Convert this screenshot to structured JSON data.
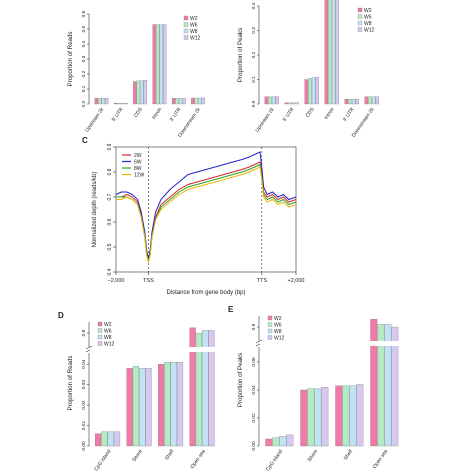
{
  "chart_data": [
    {
      "type": "bar",
      "ylabel": "Proportion of Reads",
      "categories": [
        "Upstream 2k",
        "5' UTR",
        "CDS",
        "Intron",
        "3' UTR",
        "Downstream 2k"
      ],
      "ylim": [
        0,
        0.6
      ],
      "yticks": [
        0.0,
        0.1,
        0.2,
        0.3,
        0.4,
        0.5,
        0.6
      ],
      "legend_position": "top-right",
      "series": [
        {
          "name": "W2",
          "color": "#f07aa8",
          "values": [
            0.038,
            0.006,
            0.15,
            0.53,
            0.038,
            0.04
          ]
        },
        {
          "name": "W6",
          "color": "#b5ebc4",
          "values": [
            0.038,
            0.006,
            0.155,
            0.53,
            0.038,
            0.04
          ]
        },
        {
          "name": "W8",
          "color": "#bfe3f2",
          "values": [
            0.038,
            0.006,
            0.155,
            0.53,
            0.038,
            0.04
          ]
        },
        {
          "name": "W12",
          "color": "#d7c8f0",
          "values": [
            0.038,
            0.006,
            0.158,
            0.53,
            0.038,
            0.04
          ]
        }
      ]
    },
    {
      "type": "bar",
      "ylabel": "Proportion of Peaks",
      "categories": [
        "Upstream 2k",
        "5' UTR",
        "CDS",
        "Intron",
        "3' UTR",
        "Downstream 2k"
      ],
      "ylim": [
        0,
        0.4
      ],
      "yticks": [
        0.0,
        0.1,
        0.2,
        0.3,
        0.4
      ],
      "legend_position": "top-right",
      "series": [
        {
          "name": "W2",
          "color": "#f07aa8",
          "values": [
            0.03,
            0.005,
            0.1,
            0.435,
            0.02,
            0.03
          ]
        },
        {
          "name": "W6",
          "color": "#b5ebc4",
          "values": [
            0.03,
            0.005,
            0.105,
            0.435,
            0.02,
            0.03
          ]
        },
        {
          "name": "W8",
          "color": "#bfe3f2",
          "values": [
            0.03,
            0.005,
            0.108,
            0.435,
            0.02,
            0.03
          ]
        },
        {
          "name": "W12",
          "color": "#d7c8f0",
          "values": [
            0.03,
            0.005,
            0.11,
            0.435,
            0.02,
            0.03
          ]
        }
      ]
    },
    {
      "type": "line",
      "panel_label": "C",
      "xlabel": "Distance from gene body (bp)",
      "ylabel": "Normalized depth (reads/kb)",
      "xticks": [
        "−2,000",
        "TSS",
        "TTS",
        "+2,000"
      ],
      "x_positions": [
        -2000,
        0,
        1,
        2000
      ],
      "ylim": [
        0.4,
        0.9
      ],
      "yticks": [
        0.4,
        0.5,
        0.6,
        0.7,
        0.8,
        0.9
      ],
      "legend_position": "top-left",
      "x_axis": "fraction of upstream, gene body and downstream",
      "x": [
        0,
        0.03,
        0.06,
        0.09,
        0.12,
        0.14,
        0.16,
        0.17,
        0.18,
        0.19,
        0.2,
        0.22,
        0.25,
        0.3,
        0.35,
        0.4,
        0.45,
        0.5,
        0.55,
        0.6,
        0.65,
        0.7,
        0.74,
        0.77,
        0.8,
        0.81,
        0.82,
        0.84,
        0.87,
        0.9,
        0.93,
        0.96,
        1.0
      ],
      "series": [
        {
          "name": "2W",
          "color": "#d62728",
          "values": [
            0.7,
            0.7,
            0.71,
            0.7,
            0.68,
            0.63,
            0.55,
            0.48,
            0.45,
            0.48,
            0.55,
            0.62,
            0.67,
            0.7,
            0.73,
            0.75,
            0.76,
            0.77,
            0.78,
            0.79,
            0.8,
            0.81,
            0.82,
            0.83,
            0.84,
            0.79,
            0.72,
            0.7,
            0.71,
            0.69,
            0.7,
            0.68,
            0.69
          ]
        },
        {
          "name": "6W",
          "color": "#2222cc",
          "values": [
            0.71,
            0.72,
            0.72,
            0.71,
            0.69,
            0.64,
            0.56,
            0.49,
            0.45,
            0.49,
            0.56,
            0.64,
            0.69,
            0.73,
            0.76,
            0.79,
            0.8,
            0.81,
            0.82,
            0.83,
            0.84,
            0.85,
            0.86,
            0.87,
            0.88,
            0.82,
            0.74,
            0.71,
            0.72,
            0.7,
            0.71,
            0.69,
            0.7
          ]
        },
        {
          "name": "8W",
          "color": "#2ca02c",
          "values": [
            0.7,
            0.7,
            0.7,
            0.69,
            0.67,
            0.62,
            0.54,
            0.47,
            0.44,
            0.47,
            0.54,
            0.61,
            0.66,
            0.69,
            0.72,
            0.74,
            0.75,
            0.76,
            0.77,
            0.78,
            0.79,
            0.8,
            0.81,
            0.82,
            0.83,
            0.78,
            0.71,
            0.69,
            0.7,
            0.68,
            0.69,
            0.67,
            0.68
          ]
        },
        {
          "name": "12W",
          "color": "#e8b800",
          "values": [
            0.69,
            0.69,
            0.7,
            0.69,
            0.67,
            0.62,
            0.54,
            0.47,
            0.44,
            0.47,
            0.54,
            0.61,
            0.65,
            0.68,
            0.71,
            0.73,
            0.74,
            0.75,
            0.76,
            0.77,
            0.78,
            0.79,
            0.8,
            0.81,
            0.82,
            0.77,
            0.7,
            0.68,
            0.69,
            0.67,
            0.68,
            0.66,
            0.67
          ]
        }
      ]
    },
    {
      "type": "bar",
      "panel_label": "D",
      "ylabel": "Proportion of Reads",
      "categories": [
        "CpG island",
        "Shore",
        "Shelf",
        "Open sea"
      ],
      "axis_break": true,
      "yticks_lower": [
        0.0,
        0.01,
        0.02,
        0.03,
        0.04
      ],
      "yticks_upper": [
        0.9
      ],
      "legend_position": "top-left",
      "series": [
        {
          "name": "W2",
          "color": "#f07aa8",
          "values": [
            0.006,
            0.038,
            0.04,
            0.92
          ]
        },
        {
          "name": "W6",
          "color": "#b5ebc4",
          "values": [
            0.007,
            0.039,
            0.041,
            0.9
          ]
        },
        {
          "name": "W8",
          "color": "#bfe3f2",
          "values": [
            0.007,
            0.038,
            0.041,
            0.91
          ]
        },
        {
          "name": "W12",
          "color": "#d7c8f0",
          "values": [
            0.007,
            0.038,
            0.041,
            0.91
          ]
        }
      ]
    },
    {
      "type": "bar",
      "panel_label": "E",
      "ylabel": "Proportion of Peaks",
      "categories": [
        "CpG island",
        "Shore",
        "Shelf",
        "Open sea"
      ],
      "axis_break": true,
      "yticks_lower": [
        0.0,
        0.02,
        0.04,
        0.06
      ],
      "yticks_upper": [
        0.9
      ],
      "legend_position": "top-left",
      "series": [
        {
          "name": "W2",
          "color": "#f07aa8",
          "values": [
            0.005,
            0.04,
            0.043,
            0.93
          ]
        },
        {
          "name": "W6",
          "color": "#b5ebc4",
          "values": [
            0.006,
            0.041,
            0.043,
            0.91
          ]
        },
        {
          "name": "W8",
          "color": "#bfe3f2",
          "values": [
            0.007,
            0.041,
            0.043,
            0.91
          ]
        },
        {
          "name": "W12",
          "color": "#d7c8f0",
          "values": [
            0.008,
            0.042,
            0.044,
            0.9
          ]
        }
      ]
    }
  ]
}
